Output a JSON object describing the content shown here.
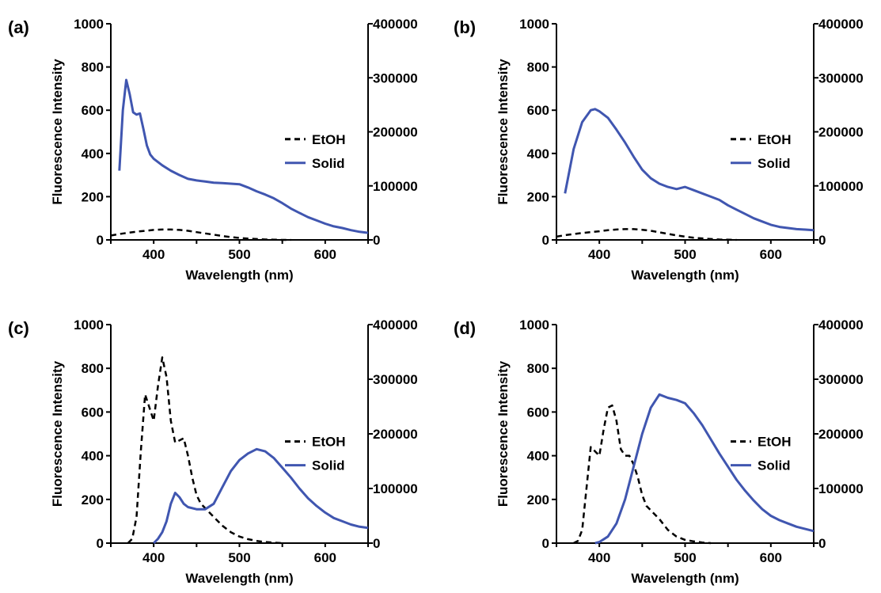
{
  "colors": {
    "EtOH": "#000000",
    "Solid": "#4056b0"
  },
  "chart_data": [
    {
      "panel": "(a)",
      "type": "line",
      "xlabel": "Wavelength (nm)",
      "ylabel": "Fluorescence Intensity",
      "xlim": [
        350,
        650
      ],
      "ylim": [
        0,
        1000
      ],
      "y2lim": [
        0,
        400000
      ],
      "xticks": [
        400,
        500,
        600
      ],
      "yticks": [
        0,
        200,
        400,
        600,
        800,
        1000
      ],
      "y2ticks": [
        0,
        100000,
        200000,
        300000,
        400000
      ],
      "legend": "center-right",
      "series": [
        {
          "name": "EtOH",
          "style": "dashed",
          "axis": "left",
          "x": [
            350,
            360,
            370,
            380,
            390,
            400,
            410,
            420,
            430,
            440,
            450,
            460,
            470,
            480,
            490,
            500,
            510,
            520,
            530,
            540,
            550,
            560
          ],
          "y": [
            20,
            27,
            33,
            38,
            42,
            46,
            48,
            48,
            46,
            42,
            36,
            30,
            24,
            18,
            13,
            9,
            6,
            4,
            2,
            1,
            0,
            0
          ]
        },
        {
          "name": "Solid",
          "style": "solid",
          "axis": "right",
          "x": [
            360,
            364,
            368,
            372,
            376,
            380,
            384,
            388,
            392,
            396,
            400,
            410,
            420,
            430,
            440,
            450,
            460,
            470,
            480,
            490,
            500,
            510,
            520,
            530,
            540,
            550,
            560,
            570,
            580,
            590,
            600,
            610,
            620,
            630,
            640,
            650
          ],
          "y": [
            128000,
            240000,
            296000,
            270000,
            236000,
            232000,
            234000,
            205000,
            175000,
            158000,
            150000,
            138000,
            128000,
            120000,
            113000,
            110000,
            108000,
            106000,
            105000,
            104000,
            103000,
            97000,
            90000,
            84000,
            77000,
            68000,
            58000,
            50000,
            42000,
            36000,
            30000,
            25000,
            22000,
            18000,
            15000,
            13000
          ]
        }
      ]
    },
    {
      "panel": "(b)",
      "type": "line",
      "xlabel": "Wavelength (nm)",
      "ylabel": "Fluorescence Intensity",
      "xlim": [
        350,
        650
      ],
      "ylim": [
        0,
        1000
      ],
      "y2lim": [
        0,
        400000
      ],
      "xticks": [
        400,
        500,
        600
      ],
      "yticks": [
        0,
        200,
        400,
        600,
        800,
        1000
      ],
      "y2ticks": [
        0,
        100000,
        200000,
        300000,
        400000
      ],
      "legend": "center-right",
      "series": [
        {
          "name": "EtOH",
          "style": "dashed",
          "axis": "left",
          "x": [
            350,
            360,
            370,
            380,
            390,
            400,
            410,
            420,
            430,
            440,
            450,
            460,
            470,
            480,
            490,
            500,
            510,
            520,
            530,
            540,
            550,
            560
          ],
          "y": [
            15,
            22,
            27,
            32,
            36,
            40,
            45,
            48,
            50,
            50,
            47,
            42,
            35,
            28,
            21,
            15,
            10,
            7,
            4,
            2,
            1,
            0
          ]
        },
        {
          "name": "Solid",
          "style": "solid",
          "axis": "right",
          "x": [
            360,
            370,
            380,
            390,
            395,
            400,
            410,
            420,
            430,
            440,
            450,
            460,
            470,
            480,
            490,
            500,
            510,
            520,
            530,
            540,
            550,
            560,
            570,
            580,
            590,
            600,
            610,
            620,
            630,
            640,
            650
          ],
          "y": [
            86000,
            168000,
            218000,
            240000,
            242000,
            238000,
            226000,
            204000,
            180000,
            154000,
            130000,
            114000,
            104000,
            98000,
            94000,
            98000,
            92000,
            86000,
            80000,
            74000,
            64000,
            56000,
            48000,
            40000,
            34000,
            28000,
            24000,
            22000,
            20000,
            19000,
            18000
          ]
        }
      ]
    },
    {
      "panel": "(c)",
      "type": "line",
      "xlabel": "Wavelength (nm)",
      "ylabel": "Fluorescence Intensity",
      "xlim": [
        350,
        650
      ],
      "ylim": [
        0,
        1000
      ],
      "y2lim": [
        0,
        400000
      ],
      "xticks": [
        400,
        500,
        600
      ],
      "yticks": [
        0,
        200,
        400,
        600,
        800,
        1000
      ],
      "y2ticks": [
        0,
        100000,
        200000,
        300000,
        400000
      ],
      "legend": "center-right",
      "series": [
        {
          "name": "EtOH",
          "style": "dashed",
          "axis": "left",
          "x": [
            370,
            375,
            380,
            385,
            390,
            395,
            400,
            405,
            410,
            415,
            420,
            425,
            430,
            435,
            440,
            445,
            450,
            455,
            460,
            470,
            480,
            490,
            500,
            510,
            520,
            530,
            540,
            550
          ],
          "y": [
            0,
            20,
            120,
            420,
            680,
            620,
            560,
            720,
            850,
            760,
            560,
            460,
            470,
            480,
            400,
            300,
            220,
            180,
            160,
            120,
            80,
            50,
            30,
            18,
            10,
            5,
            2,
            0
          ]
        },
        {
          "name": "Solid",
          "style": "solid",
          "axis": "right",
          "x": [
            400,
            405,
            410,
            415,
            420,
            425,
            430,
            435,
            440,
            450,
            460,
            470,
            480,
            490,
            500,
            510,
            520,
            530,
            540,
            550,
            560,
            570,
            580,
            590,
            600,
            610,
            620,
            630,
            640,
            650
          ],
          "y": [
            0,
            8000,
            20000,
            40000,
            72000,
            92000,
            84000,
            72000,
            66000,
            62000,
            62000,
            72000,
            102000,
            132000,
            152000,
            164000,
            172000,
            168000,
            156000,
            138000,
            120000,
            100000,
            82000,
            68000,
            56000,
            46000,
            40000,
            34000,
            30000,
            28000
          ]
        }
      ]
    },
    {
      "panel": "(d)",
      "type": "line",
      "xlabel": "Wavelength (nm)",
      "ylabel": "Fluorescence Intensity",
      "xlim": [
        350,
        650
      ],
      "ylim": [
        0,
        1000
      ],
      "y2lim": [
        0,
        400000
      ],
      "xticks": [
        400,
        500,
        600
      ],
      "yticks": [
        0,
        200,
        400,
        600,
        800,
        1000
      ],
      "y2ticks": [
        0,
        100000,
        200000,
        300000,
        400000
      ],
      "legend": "center-right",
      "series": [
        {
          "name": "EtOH",
          "style": "dashed",
          "axis": "left",
          "x": [
            370,
            375,
            380,
            385,
            390,
            395,
            400,
            405,
            410,
            415,
            420,
            425,
            430,
            435,
            440,
            445,
            450,
            455,
            460,
            470,
            480,
            490,
            500,
            510,
            520,
            530
          ],
          "y": [
            0,
            10,
            60,
            250,
            440,
            420,
            400,
            520,
            620,
            630,
            560,
            430,
            400,
            400,
            360,
            300,
            220,
            170,
            150,
            110,
            60,
            30,
            15,
            8,
            3,
            0
          ]
        },
        {
          "name": "Solid",
          "style": "solid",
          "axis": "right",
          "x": [
            395,
            400,
            410,
            420,
            430,
            440,
            450,
            460,
            470,
            480,
            490,
            500,
            510,
            520,
            530,
            540,
            550,
            560,
            570,
            580,
            590,
            600,
            610,
            620,
            630,
            640,
            650
          ],
          "y": [
            0,
            2000,
            12000,
            36000,
            80000,
            140000,
            200000,
            248000,
            272000,
            266000,
            262000,
            256000,
            238000,
            216000,
            190000,
            164000,
            140000,
            116000,
            96000,
            78000,
            62000,
            50000,
            42000,
            36000,
            30000,
            26000,
            22000
          ]
        }
      ]
    }
  ]
}
